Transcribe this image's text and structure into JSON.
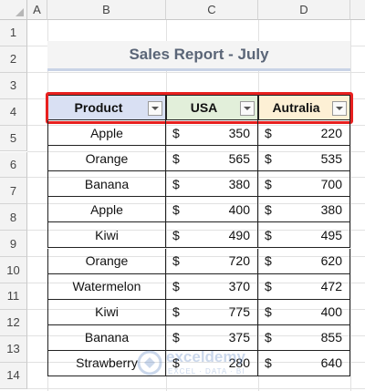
{
  "columns": [
    "A",
    "B",
    "C",
    "D"
  ],
  "rows": [
    "1",
    "2",
    "3",
    "4",
    "5",
    "6",
    "7",
    "8",
    "9",
    "10",
    "11",
    "12",
    "13",
    "14"
  ],
  "title": "Sales Report - July",
  "headers": {
    "product": "Product",
    "usa": "USA",
    "australia": "Autralia"
  },
  "currency_symbol": "$",
  "table_rows": [
    {
      "product": "Apple",
      "usa": "350",
      "australia": "220"
    },
    {
      "product": "Orange",
      "usa": "565",
      "australia": "535"
    },
    {
      "product": "Banana",
      "usa": "380",
      "australia": "700"
    },
    {
      "product": "Apple",
      "usa": "400",
      "australia": "380"
    },
    {
      "product": "Kiwi",
      "usa": "490",
      "australia": "495"
    },
    {
      "product": "Orange",
      "usa": "720",
      "australia": "620"
    },
    {
      "product": "Watermelon",
      "usa": "370",
      "australia": "472"
    },
    {
      "product": "Kiwi",
      "usa": "775",
      "australia": "400"
    },
    {
      "product": "Banana",
      "usa": "375",
      "australia": "855"
    },
    {
      "product": "Strawberry",
      "usa": "280",
      "australia": "640"
    }
  ],
  "watermark": {
    "name": "exceldemy",
    "tagline": "EXCEL · DATA · BI"
  },
  "colors": {
    "header_product": "#d9e0f3",
    "header_usa": "#e2efda",
    "header_australia": "#fdf0d5",
    "highlight_box": "#e8201f",
    "title_text": "#5a6577"
  }
}
